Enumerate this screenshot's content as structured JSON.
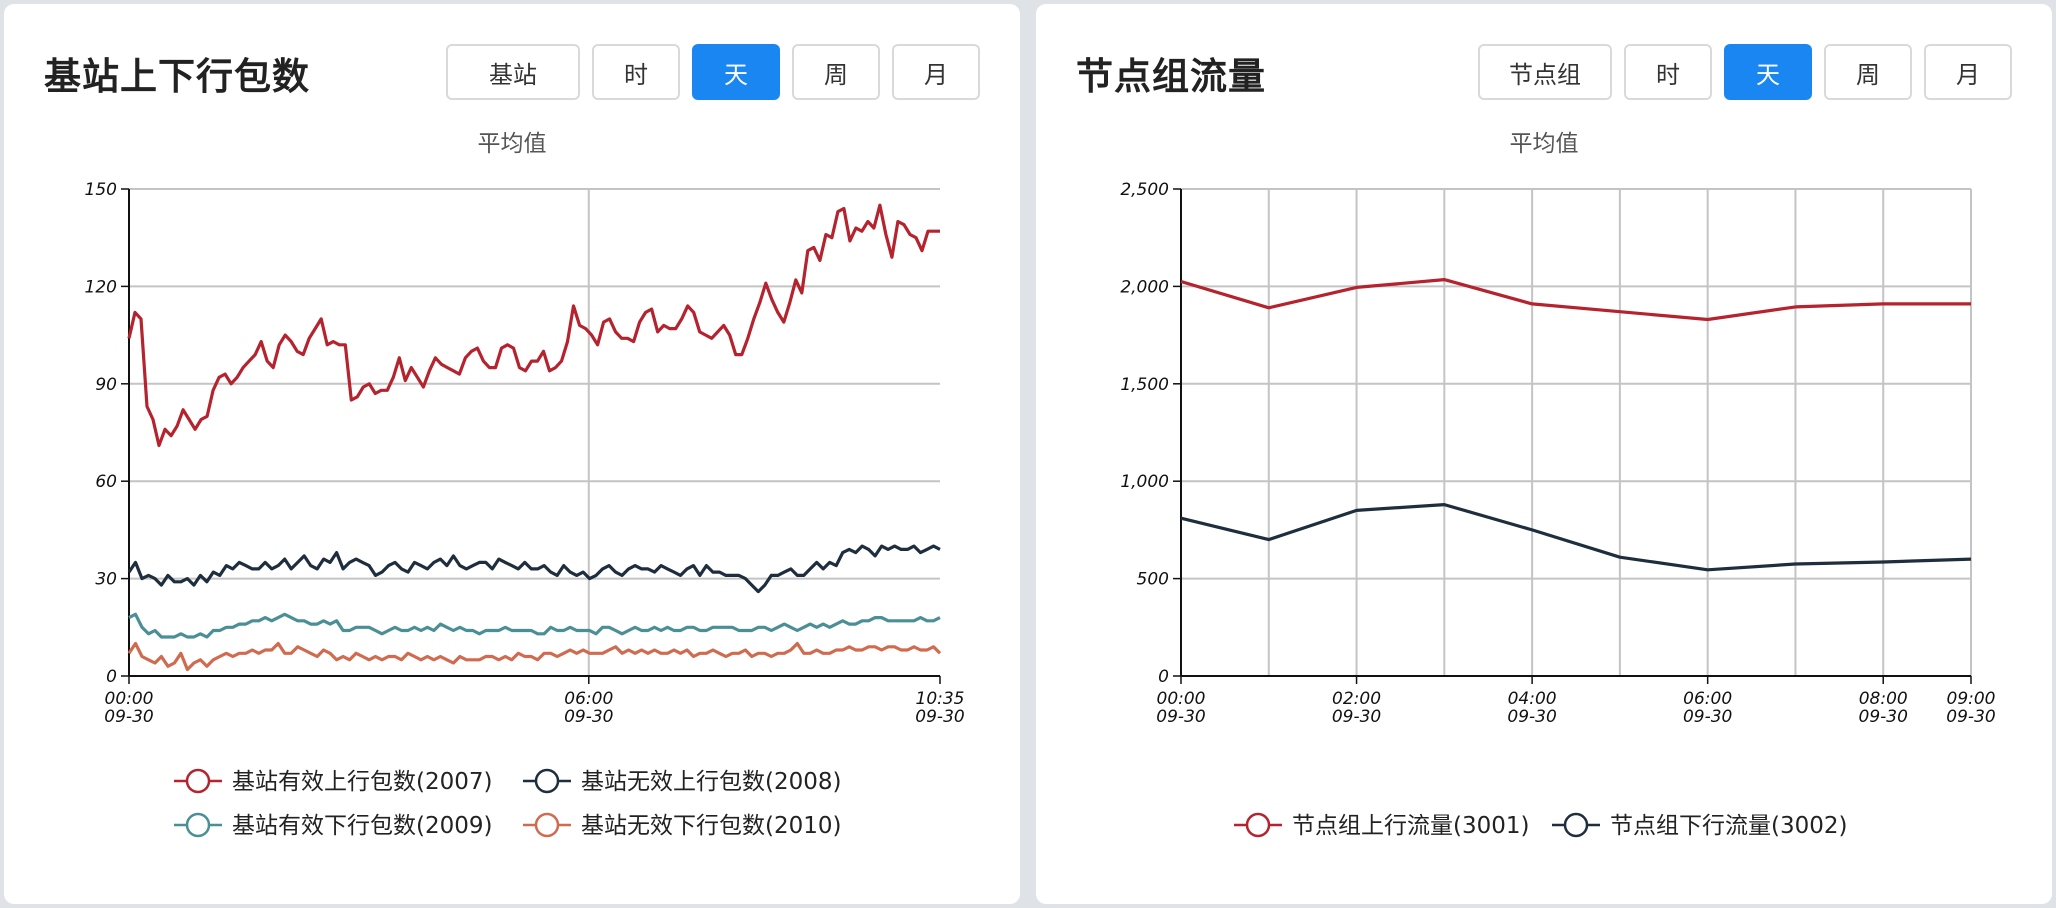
{
  "panels": [
    {
      "title": "基站上下行包数",
      "buttons": [
        {
          "label": "基站",
          "active": false
        },
        {
          "label": "时",
          "active": false
        },
        {
          "label": "天",
          "active": true
        },
        {
          "label": "周",
          "active": false
        },
        {
          "label": "月",
          "active": false
        }
      ],
      "subtitle": "平均值"
    },
    {
      "title": "节点组流量",
      "buttons": [
        {
          "label": "节点组",
          "active": false
        },
        {
          "label": "时",
          "active": false
        },
        {
          "label": "天",
          "active": true
        },
        {
          "label": "周",
          "active": false
        },
        {
          "label": "月",
          "active": false
        }
      ],
      "subtitle": "平均值"
    }
  ],
  "chart_data": [
    {
      "type": "line",
      "title": "平均值",
      "ylim": [
        0,
        150
      ],
      "yticks": [
        0,
        30,
        60,
        90,
        120,
        150
      ],
      "ytick_labels": [
        "0",
        "30",
        "60",
        "90",
        "120",
        "150"
      ],
      "x_range_minutes": [
        0,
        635
      ],
      "xticks": [
        {
          "minute": 0,
          "time": "00:00",
          "date": "09-30"
        },
        {
          "minute": 360,
          "time": "06:00",
          "date": "09-30"
        },
        {
          "minute": 635,
          "time": "10:35",
          "date": "09-30"
        }
      ],
      "x_gridlines_minutes": [
        360
      ],
      "grid": true,
      "legend_position": "bottom",
      "legend_rows": [
        [
          0,
          1
        ],
        [
          2,
          3
        ]
      ],
      "series": [
        {
          "name": "基站有效上行包数(2007)",
          "color": "#b5232e",
          "values": [
            104,
            112,
            110,
            83,
            79,
            71,
            76,
            74,
            77,
            82,
            79,
            76,
            79,
            80,
            88,
            92,
            93,
            90,
            92,
            95,
            97,
            99,
            103,
            97,
            95,
            102,
            105,
            103,
            100,
            99,
            104,
            107,
            110,
            102,
            103,
            102,
            102,
            85,
            86,
            89,
            90,
            87,
            88,
            88,
            92,
            98,
            91,
            95,
            92,
            89,
            94,
            98,
            96,
            95,
            94,
            93,
            98,
            100,
            101,
            97,
            95,
            95,
            101,
            102,
            101,
            95,
            94,
            97,
            97,
            100,
            94,
            95,
            97,
            103,
            114,
            108,
            107,
            105,
            102,
            109,
            110,
            106,
            104,
            104,
            103,
            109,
            112,
            113,
            106,
            108,
            107,
            107,
            110,
            114,
            112,
            106,
            105,
            104,
            106,
            108,
            105,
            99,
            99,
            104,
            110,
            115,
            121,
            116,
            112,
            109,
            115,
            122,
            118,
            131,
            132,
            128,
            136,
            135,
            143,
            144,
            134,
            138,
            137,
            140,
            138,
            145,
            136,
            129,
            140,
            139,
            136,
            135,
            131,
            137,
            137,
            137
          ]
        },
        {
          "name": "基站无效上行包数(2008)",
          "color": "#1f2e3e",
          "values": [
            32,
            35,
            30,
            31,
            30,
            28,
            31,
            29,
            29,
            30,
            28,
            31,
            29,
            32,
            31,
            34,
            33,
            35,
            34,
            33,
            33,
            35,
            33,
            34,
            36,
            33,
            35,
            37,
            34,
            33,
            36,
            35,
            38,
            33,
            35,
            36,
            35,
            34,
            31,
            32,
            34,
            35,
            33,
            32,
            35,
            34,
            33,
            35,
            36,
            34,
            37,
            34,
            33,
            34,
            35,
            35,
            33,
            36,
            35,
            34,
            33,
            35,
            33,
            33,
            34,
            32,
            31,
            34,
            32,
            31,
            32,
            30,
            31,
            33,
            34,
            32,
            31,
            33,
            34,
            33,
            33,
            32,
            34,
            33,
            32,
            31,
            33,
            34,
            31,
            34,
            32,
            32,
            31,
            31,
            31,
            30,
            28,
            26,
            28,
            31,
            31,
            32,
            33,
            31,
            31,
            33,
            35,
            33,
            35,
            34,
            38,
            39,
            38,
            40,
            39,
            37,
            40,
            39,
            40,
            39,
            39,
            40,
            38,
            39,
            40,
            39
          ]
        },
        {
          "name": "基站有效下行包数(2009)",
          "color": "#4a8f96",
          "values": [
            18,
            19,
            15,
            13,
            14,
            12,
            12,
            12,
            13,
            12,
            12,
            13,
            12,
            14,
            14,
            15,
            15,
            16,
            16,
            17,
            17,
            18,
            17,
            18,
            19,
            18,
            17,
            17,
            16,
            16,
            17,
            16,
            17,
            14,
            14,
            15,
            15,
            15,
            14,
            13,
            14,
            15,
            14,
            14,
            15,
            14,
            15,
            14,
            16,
            15,
            14,
            15,
            14,
            14,
            13,
            14,
            14,
            14,
            15,
            14,
            14,
            14,
            14,
            13,
            13,
            15,
            14,
            14,
            15,
            14,
            14,
            14,
            13,
            15,
            15,
            14,
            13,
            14,
            15,
            14,
            14,
            15,
            14,
            15,
            14,
            14,
            15,
            15,
            14,
            14,
            15,
            15,
            15,
            15,
            14,
            14,
            14,
            15,
            15,
            14,
            15,
            16,
            15,
            14,
            15,
            16,
            15,
            16,
            15,
            16,
            17,
            16,
            16,
            17,
            17,
            18,
            18,
            17,
            17,
            17,
            17,
            17,
            18,
            17,
            17,
            18
          ]
        },
        {
          "name": "基站无效下行包数(2010)",
          "color": "#d06b4f",
          "values": [
            7,
            10,
            6,
            5,
            4,
            6,
            3,
            4,
            7,
            2,
            4,
            5,
            3,
            5,
            6,
            7,
            6,
            7,
            7,
            8,
            7,
            8,
            8,
            10,
            7,
            7,
            9,
            8,
            7,
            6,
            8,
            7,
            5,
            6,
            5,
            7,
            6,
            5,
            6,
            5,
            6,
            6,
            5,
            7,
            6,
            5,
            6,
            5,
            6,
            5,
            4,
            6,
            5,
            5,
            5,
            6,
            6,
            5,
            6,
            5,
            7,
            6,
            6,
            5,
            7,
            7,
            6,
            7,
            8,
            7,
            8,
            7,
            7,
            7,
            8,
            9,
            7,
            8,
            7,
            8,
            7,
            8,
            7,
            7,
            8,
            7,
            8,
            6,
            7,
            7,
            8,
            7,
            6,
            7,
            7,
            8,
            6,
            7,
            7,
            6,
            7,
            7,
            8,
            10,
            7,
            7,
            8,
            7,
            7,
            8,
            8,
            9,
            8,
            8,
            9,
            9,
            8,
            9,
            9,
            8,
            8,
            9,
            8,
            8,
            9,
            7
          ]
        }
      ]
    },
    {
      "type": "line",
      "title": "平均值",
      "ylim": [
        0,
        2500
      ],
      "yticks": [
        0,
        500,
        1000,
        1500,
        2000,
        2500
      ],
      "ytick_labels": [
        "0",
        "500",
        "1,000",
        "1,500",
        "2,000",
        "2,500"
      ],
      "x": [
        "00:00",
        "01:00",
        "02:00",
        "03:00",
        "04:00",
        "05:00",
        "06:00",
        "07:00",
        "08:00",
        "09:00"
      ],
      "xticks": [
        {
          "index": 0,
          "time": "00:00",
          "date": "09-30"
        },
        {
          "index": 2,
          "time": "02:00",
          "date": "09-30"
        },
        {
          "index": 4,
          "time": "04:00",
          "date": "09-30"
        },
        {
          "index": 6,
          "time": "06:00",
          "date": "09-30"
        },
        {
          "index": 8,
          "time": "08:00",
          "date": "09-30"
        },
        {
          "index": 9,
          "time": "09:00",
          "date": "09-30"
        }
      ],
      "grid": true,
      "legend_position": "bottom",
      "legend_rows": [
        [
          0,
          1
        ]
      ],
      "series": [
        {
          "name": "节点组上行流量(3001)",
          "color": "#b5232e",
          "values": [
            2025,
            1890,
            1995,
            2035,
            1910,
            1870,
            1830,
            1895,
            1910,
            1910
          ]
        },
        {
          "name": "节点组下行流量(3002)",
          "color": "#1f2e3e",
          "values": [
            810,
            700,
            850,
            880,
            750,
            610,
            545,
            575,
            585,
            600
          ]
        }
      ]
    }
  ]
}
